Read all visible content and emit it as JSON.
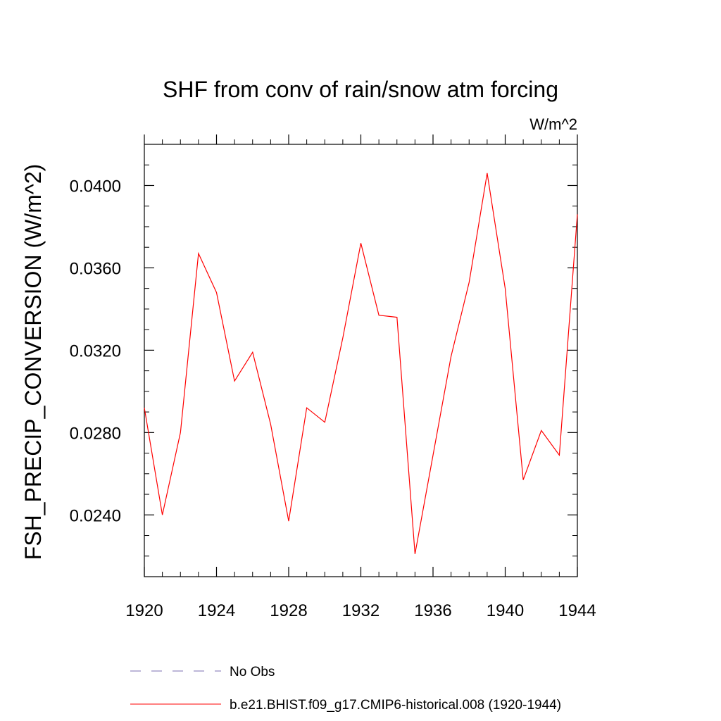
{
  "chart_data": {
    "type": "line",
    "title": "SHF from conv of rain/snow atm forcing",
    "units_label": "W/m^2",
    "ylabel": "FSH_PRECIP_CONVERSION  (W/m^2)",
    "xlabel": "",
    "xlim": [
      1920,
      1944
    ],
    "ylim": [
      0.021,
      0.042
    ],
    "x_ticks": [
      1920,
      1924,
      1928,
      1932,
      1936,
      1940,
      1944
    ],
    "x_tick_labels": [
      "1920",
      "1924",
      "1928",
      "1932",
      "1936",
      "1940",
      "1944"
    ],
    "y_ticks": [
      0.024,
      0.028,
      0.032,
      0.036,
      0.04
    ],
    "y_tick_labels": [
      "0.0240",
      "0.0280",
      "0.0320",
      "0.0360",
      "0.0400"
    ],
    "grid": false,
    "legend_position": "bottom",
    "series": [
      {
        "name": "b.e21.BHIST.f09_g17.CMIP6-historical.008 (1920-1944)",
        "color": "#ff0000",
        "style": "solid",
        "x": [
          1920,
          1921,
          1922,
          1923,
          1924,
          1925,
          1926,
          1927,
          1928,
          1929,
          1930,
          1931,
          1932,
          1933,
          1934,
          1935,
          1936,
          1937,
          1938,
          1939,
          1940,
          1941,
          1942,
          1943,
          1944
        ],
        "y": [
          0.0292,
          0.024,
          0.028,
          0.0367,
          0.0348,
          0.0305,
          0.0319,
          0.0284,
          0.0237,
          0.0292,
          0.0285,
          0.0326,
          0.0372,
          0.0337,
          0.0336,
          0.0221,
          0.0269,
          0.0317,
          0.0353,
          0.0406,
          0.035,
          0.0257,
          0.0281,
          0.0269,
          0.0386
        ]
      }
    ],
    "legend": [
      {
        "label": "No Obs",
        "color": "#7b6fb0",
        "style": "dashed"
      },
      {
        "label": "b.e21.BHIST.f09_g17.CMIP6-historical.008 (1920-1944)",
        "color": "#ff0000",
        "style": "solid"
      }
    ]
  }
}
